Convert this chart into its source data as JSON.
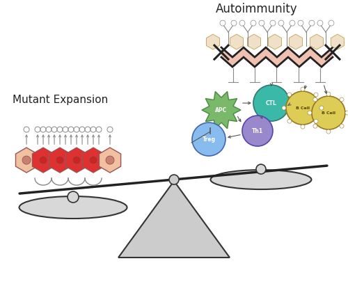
{
  "background_color": "#ffffff",
  "scale_beam_color": "#222222",
  "scale_beam_lw": 2.5,
  "scale_pan_color": "#d8d8d8",
  "scale_pan_edge_color": "#333333",
  "scale_fulcrum_color": "#cccccc",
  "scale_fulcrum_edge": "#333333",
  "text_autoimmunity": "Autoimmunity",
  "text_mutant": "Mutant Expansion",
  "text_color": "#222222",
  "hex_colors_left": [
    "#f0c0a0",
    "#e03030",
    "#e03030",
    "#e03030",
    "#e03030",
    "#f0c0a0"
  ],
  "hex_dot_colors": [
    "#c88070",
    "#cc2222",
    "#cc2222",
    "#cc2222",
    "#cc2222",
    "#c88070"
  ],
  "cell_colors": {
    "APC": "#7ab86a",
    "CTL": "#3ab8a8",
    "Treg": "#88bbee",
    "Th1": "#9988cc",
    "BCell1": "#ddcc55",
    "BCell2": "#ddcc55"
  },
  "dna_salmon": "#f0c0b0",
  "antigen_hex_color": "#f0e0c8",
  "antigen_hex_edge": "#ccaa66"
}
